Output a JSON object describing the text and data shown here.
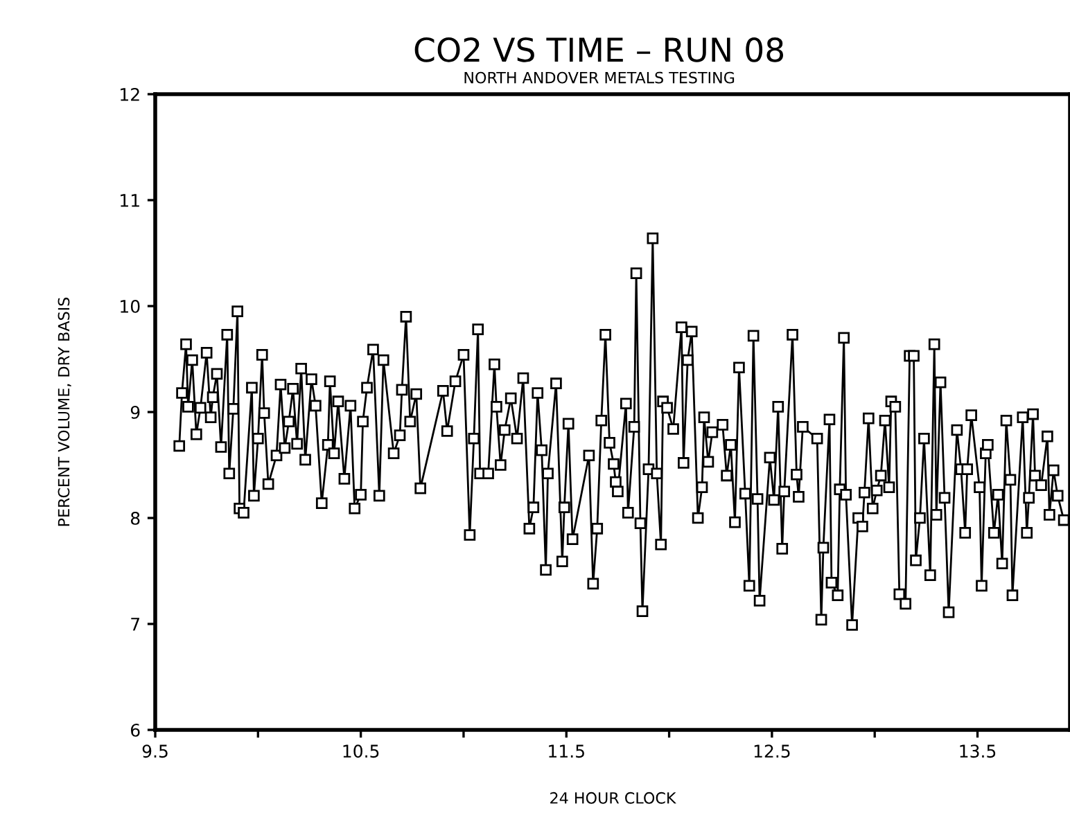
{
  "chart_data": {
    "type": "line",
    "title": "CO2 VS TIME – RUN 08",
    "subtitle": "NORTH ANDOVER METALS TESTING",
    "xlabel": "24 HOUR CLOCK",
    "ylabel": "PERCENT VOLUME, DRY BASIS",
    "xlim": [
      9.5,
      13.95
    ],
    "ylim": [
      6,
      12
    ],
    "xticks": [
      9.5,
      {
        "value": 10,
        "label": null
      },
      10.5,
      {
        "value": 11,
        "label": null
      },
      11.5,
      {
        "value": 12,
        "label": null
      },
      12.5,
      {
        "value": 13,
        "label": null
      },
      13.5
    ],
    "yticks": [
      6,
      7,
      8,
      9,
      10,
      11,
      12
    ],
    "grid": false,
    "legend": false,
    "marker": "square",
    "line_style": "solid",
    "series": [
      {
        "color": "#000000",
        "x": [
          9.617,
          9.63,
          9.65,
          9.66,
          9.68,
          9.7,
          9.72,
          9.75,
          9.77,
          9.78,
          9.8,
          9.82,
          9.85,
          9.86,
          9.88,
          9.9,
          9.91,
          9.93,
          9.97,
          9.98,
          10.0,
          10.02,
          10.03,
          10.05,
          10.09,
          10.11,
          10.13,
          10.15,
          10.17,
          10.19,
          10.21,
          10.23,
          10.26,
          10.28,
          10.31,
          10.34,
          10.35,
          10.37,
          10.39,
          10.42,
          10.45,
          10.47,
          10.5,
          10.51,
          10.53,
          10.56,
          10.59,
          10.61,
          10.66,
          10.69,
          10.7,
          10.72,
          10.74,
          10.77,
          10.79,
          10.9,
          10.92,
          10.96,
          11.0,
          11.03,
          11.05,
          11.07,
          11.08,
          11.12,
          11.15,
          11.16,
          11.18,
          11.2,
          11.23,
          11.26,
          11.29,
          11.32,
          11.34,
          11.36,
          11.38,
          11.4,
          11.41,
          11.45,
          11.48,
          11.49,
          11.51,
          11.53,
          11.61,
          11.63,
          11.65,
          11.67,
          11.69,
          11.71,
          11.73,
          11.74,
          11.75,
          11.79,
          11.8,
          11.83,
          11.84,
          11.86,
          11.87,
          11.9,
          11.92,
          11.94,
          11.96,
          11.97,
          11.99,
          12.02,
          12.06,
          12.07,
          12.09,
          12.11,
          12.14,
          12.16,
          12.17,
          12.19,
          12.21,
          12.26,
          12.28,
          12.3,
          12.32,
          12.34,
          12.37,
          12.39,
          12.41,
          12.43,
          12.44,
          12.49,
          12.51,
          12.53,
          12.55,
          12.56,
          12.6,
          12.62,
          12.63,
          12.65,
          12.72,
          12.74,
          12.75,
          12.78,
          12.79,
          12.82,
          12.83,
          12.85,
          12.86,
          12.89,
          12.92,
          12.94,
          12.95,
          12.97,
          12.99,
          13.01,
          13.03,
          13.05,
          13.07,
          13.08,
          13.1,
          13.12,
          13.15,
          13.17,
          13.19,
          13.2,
          13.22,
          13.24,
          13.27,
          13.29,
          13.3,
          13.32,
          13.34,
          13.36,
          13.4,
          13.42,
          13.44,
          13.45,
          13.47,
          13.51,
          13.52,
          13.54,
          13.55,
          13.58,
          13.6,
          13.62,
          13.64,
          13.66,
          13.67,
          13.72,
          13.74,
          13.75,
          13.77,
          13.78,
          13.81,
          13.84,
          13.85,
          13.87,
          13.89,
          13.92
        ],
        "values": [
          8.68,
          9.18,
          9.64,
          9.05,
          9.49,
          8.79,
          9.04,
          9.56,
          8.95,
          9.14,
          9.36,
          8.67,
          9.73,
          8.42,
          9.03,
          9.95,
          8.09,
          8.05,
          9.23,
          8.21,
          8.75,
          9.54,
          8.99,
          8.32,
          8.59,
          9.26,
          8.66,
          8.91,
          9.22,
          8.7,
          9.41,
          8.55,
          9.31,
          9.06,
          8.14,
          8.69,
          9.29,
          8.61,
          9.1,
          8.37,
          9.06,
          8.09,
          8.22,
          8.91,
          9.23,
          9.59,
          8.21,
          9.49,
          8.61,
          8.78,
          9.21,
          9.9,
          8.91,
          9.17,
          8.28,
          9.2,
          8.82,
          9.29,
          9.54,
          7.84,
          8.75,
          9.78,
          8.42,
          8.42,
          9.45,
          9.05,
          8.5,
          8.83,
          9.13,
          8.75,
          9.32,
          7.9,
          8.1,
          9.18,
          8.64,
          7.51,
          8.42,
          9.27,
          7.59,
          8.1,
          8.89,
          7.8,
          8.59,
          7.38,
          7.9,
          8.92,
          9.73,
          8.71,
          8.51,
          8.34,
          8.25,
          9.08,
          8.05,
          8.86,
          10.31,
          7.95,
          7.12,
          8.46,
          10.64,
          8.42,
          7.75,
          9.1,
          9.04,
          8.84,
          9.8,
          8.52,
          9.49,
          9.76,
          8.0,
          8.29,
          8.95,
          8.53,
          8.81,
          8.88,
          8.4,
          8.69,
          7.96,
          9.42,
          8.23,
          7.36,
          9.72,
          8.18,
          7.22,
          8.57,
          8.17,
          9.05,
          7.71,
          8.25,
          9.73,
          8.41,
          8.2,
          8.86,
          8.75,
          7.04,
          7.72,
          8.93,
          7.39,
          7.27,
          8.27,
          9.7,
          8.22,
          6.99,
          8.0,
          7.92,
          8.24,
          8.94,
          8.09,
          8.26,
          8.4,
          8.92,
          8.29,
          9.1,
          9.05,
          7.28,
          7.19,
          9.53,
          9.53,
          7.6,
          8.0,
          8.75,
          7.46,
          9.64,
          8.03,
          9.28,
          8.19,
          7.11,
          8.83,
          8.46,
          7.86,
          8.46,
          8.97,
          8.29,
          7.36,
          8.61,
          8.69,
          7.86,
          8.22,
          7.57,
          8.92,
          8.36,
          7.27,
          8.95,
          7.86,
          8.19,
          8.98,
          8.4,
          8.31,
          8.77,
          8.03,
          8.45,
          8.21,
          7.98
        ]
      }
    ]
  }
}
